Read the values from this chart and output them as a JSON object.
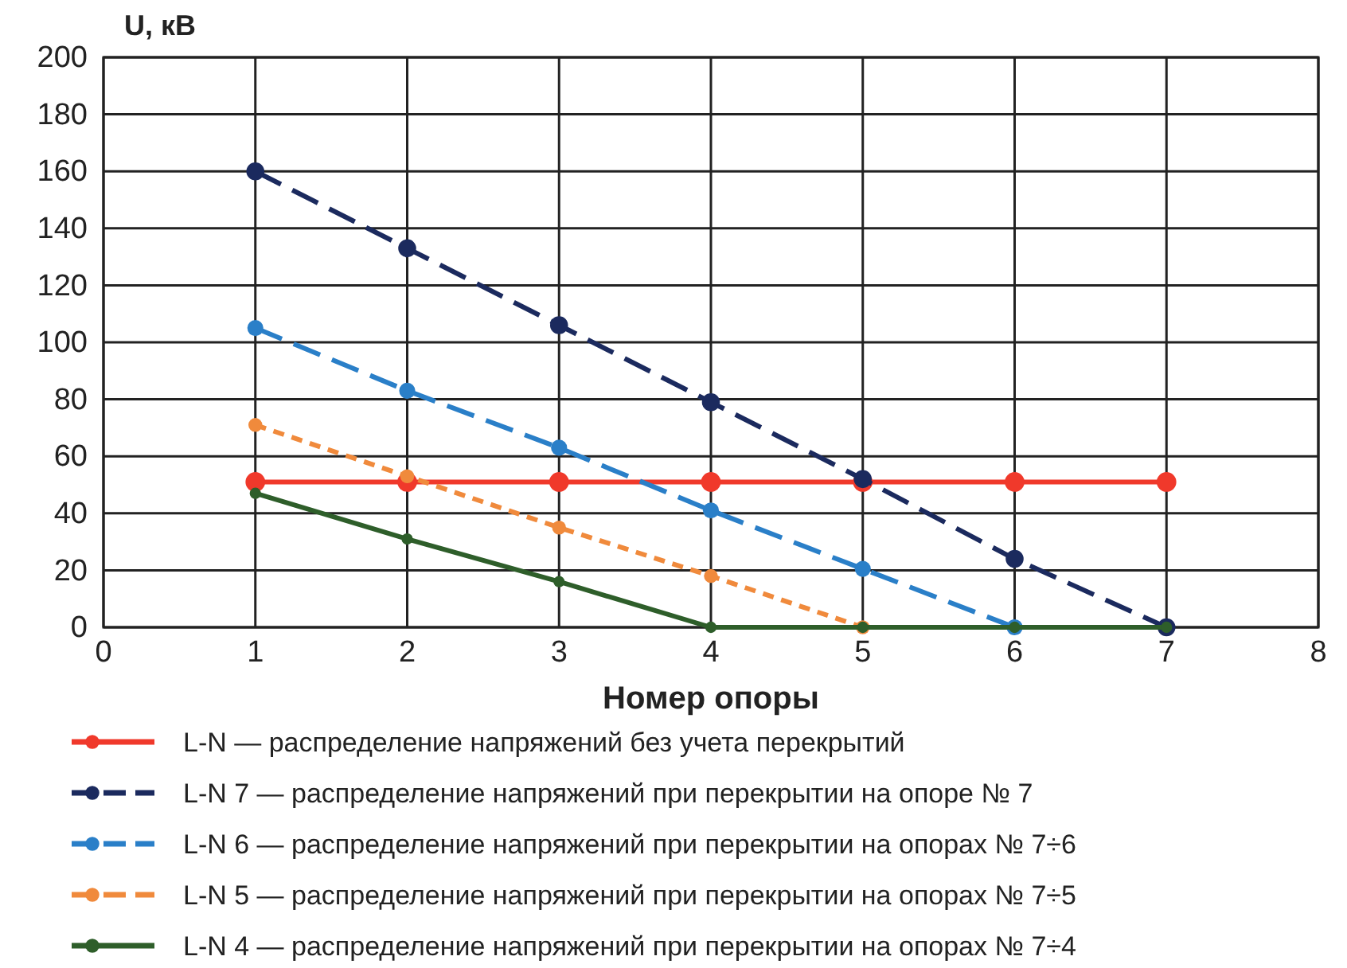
{
  "chart_data": {
    "type": "line",
    "ylabel": "U, кВ",
    "xlabel": "Номер опоры",
    "x": [
      1,
      2,
      3,
      4,
      5,
      6,
      7
    ],
    "series": [
      {
        "name": "L-N — распределение напряжений без учета перекрытий",
        "color": "#f0392b",
        "line_style": "solid",
        "values": [
          51,
          51,
          51,
          51,
          51,
          51,
          51
        ]
      },
      {
        "name": "L-N 7 — распределение напряжений при перекрытии на опоре № 7",
        "color": "#1b2a5e",
        "line_style": "dashed",
        "values": [
          160,
          133,
          106,
          79,
          52,
          24,
          0
        ]
      },
      {
        "name": "L-N 6 — распределение напряжений при перекрытии на опорах № 7÷6",
        "color": "#2a7fc8",
        "line_style": "dashed",
        "values": [
          105,
          83,
          63,
          41,
          20.5,
          0,
          null
        ]
      },
      {
        "name": "L-N 5 — распределение напряжений при перекрытии на опорах № 7÷5",
        "color": "#f08a3c",
        "line_style": "dotted",
        "values": [
          71,
          53,
          35,
          18,
          0,
          null,
          null
        ]
      },
      {
        "name": "L-N 4 — распределение напряжений при перекрытии на опорах № 7÷4",
        "color": "#2e5e2a",
        "line_style": "solid",
        "values": [
          47,
          31,
          16,
          0,
          0,
          0,
          0
        ]
      }
    ],
    "xlim": [
      0,
      8
    ],
    "xticks": [
      0,
      1,
      2,
      3,
      4,
      5,
      6,
      7,
      8
    ],
    "ylim": [
      0,
      200
    ],
    "yticks": [
      0,
      20,
      40,
      60,
      80,
      100,
      120,
      140,
      160,
      180,
      200
    ],
    "grid": true,
    "legend": "bottom",
    "marker": "circle"
  }
}
